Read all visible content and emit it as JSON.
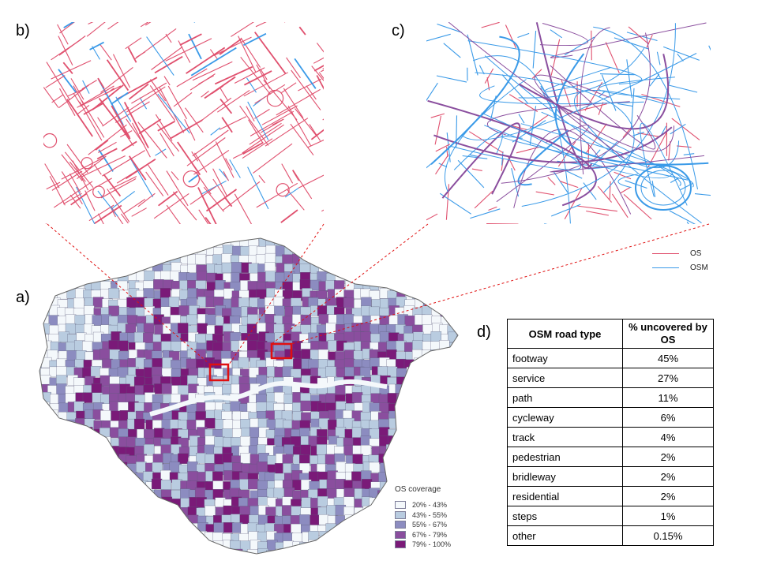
{
  "panels": {
    "a": "a)",
    "b": "b)",
    "c": "c)",
    "d": "d)"
  },
  "colors": {
    "os_line": "#e0506e",
    "osm_line": "#3a9ae8",
    "callout": "#e01010",
    "coverage": [
      "#f4f8fb",
      "#b9cce0",
      "#8c8cc0",
      "#8a4e9e",
      "#7a1a78"
    ]
  },
  "road_legend": [
    {
      "label": "OS",
      "color": "#e0506e"
    },
    {
      "label": "OSM",
      "color": "#3a9ae8"
    }
  ],
  "coverage_legend": {
    "title": "OS coverage",
    "items": [
      {
        "label": "20% - 43%",
        "color": "#f4f8fb"
      },
      {
        "label": "43% - 55%",
        "color": "#b9cce0"
      },
      {
        "label": "55% - 67%",
        "color": "#8c8cc0"
      },
      {
        "label": "67% - 79%",
        "color": "#8a4e9e"
      },
      {
        "label": "79% - 100%",
        "color": "#7a1a78"
      }
    ]
  },
  "table": {
    "headers": [
      "OSM road type",
      "% uncovered by OS"
    ],
    "rows": [
      {
        "type": "footway",
        "pct": "45%"
      },
      {
        "type": "service",
        "pct": "27%"
      },
      {
        "type": "path",
        "pct": "11%"
      },
      {
        "type": "cycleway",
        "pct": "6%"
      },
      {
        "type": "track",
        "pct": "4%"
      },
      {
        "type": "pedestrian",
        "pct": "2%"
      },
      {
        "type": "bridleway",
        "pct": "2%"
      },
      {
        "type": "residential",
        "pct": "2%"
      },
      {
        "type": "steps",
        "pct": "1%"
      },
      {
        "type": "other",
        "pct": "0.15%"
      }
    ]
  }
}
